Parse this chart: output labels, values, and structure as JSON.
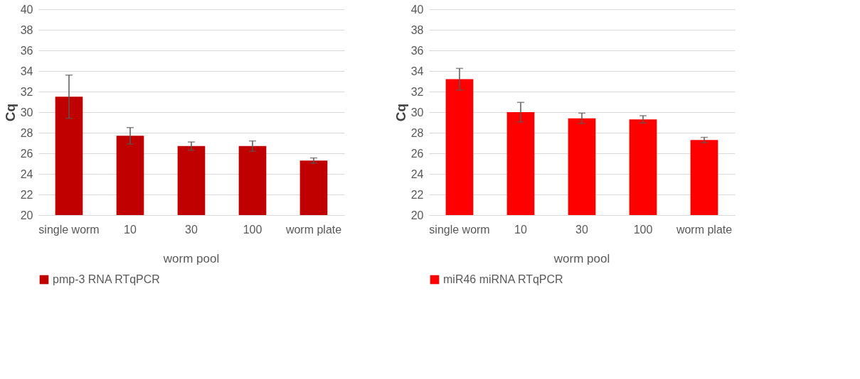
{
  "chart_data": [
    {
      "type": "bar",
      "ylabel": "Cq",
      "categories": [
        "single worm",
        "10",
        "30",
        "100",
        "worm plate"
      ],
      "annotations": [
        "worm pool"
      ],
      "ylim": [
        20,
        40
      ],
      "yticks": [
        20,
        22,
        24,
        26,
        28,
        30,
        32,
        34,
        36,
        38,
        40
      ],
      "grid": "y",
      "legend": "bottom",
      "series": [
        {
          "name": "pmp-3 RNA RTqPCR",
          "color": "#c00000",
          "values": [
            31.5,
            27.7,
            26.7,
            26.7,
            25.3
          ],
          "errors": [
            2.1,
            0.8,
            0.4,
            0.5,
            0.25
          ]
        }
      ]
    },
    {
      "type": "bar",
      "ylabel": "Cq",
      "categories": [
        "single worm",
        "10",
        "30",
        "100",
        "worm plate"
      ],
      "annotations": [
        "worm pool"
      ],
      "ylim": [
        20,
        40
      ],
      "yticks": [
        20,
        22,
        24,
        26,
        28,
        30,
        32,
        34,
        36,
        38,
        40
      ],
      "grid": "y",
      "legend": "bottom",
      "series": [
        {
          "name": "miR46 miRNA RTqPCR",
          "color": "#ff0000",
          "values": [
            33.2,
            30.0,
            29.4,
            29.3,
            27.3
          ],
          "errors": [
            1.05,
            0.95,
            0.5,
            0.35,
            0.25
          ]
        }
      ]
    }
  ]
}
